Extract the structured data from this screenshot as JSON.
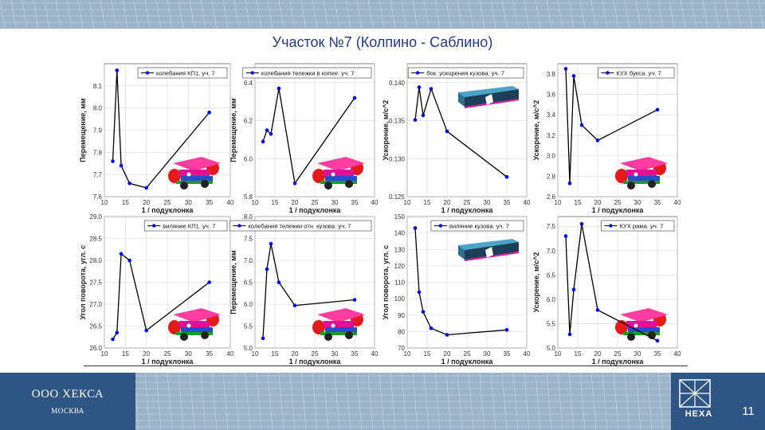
{
  "title": "Участок №7 (Колпино - Саблино)",
  "footer": {
    "company": "ООО ХЕКСА",
    "city": "МОСКВА",
    "logo_text": "HEXA",
    "page_number": "11"
  },
  "colors": {
    "series": "#0000ee",
    "line": "#000000",
    "title": "#1e3a8a",
    "footer_box": "#2f5584"
  },
  "chart_data": [
    {
      "type": "line",
      "legend": "колебания КП1. уч. 7",
      "ylabel": "Перемещение, мм",
      "xlabel": "1 / подуклонка",
      "x": [
        12,
        13,
        14,
        16,
        20,
        35
      ],
      "y": [
        7.76,
        8.17,
        7.74,
        7.66,
        7.64,
        7.98
      ],
      "xlim": [
        10,
        40
      ],
      "ylim": [
        7.6,
        8.2
      ],
      "yticks": [
        "7.6",
        "7.7",
        "7.8",
        "7.9",
        "8.0",
        "8.1"
      ],
      "xticks": [
        "10",
        "15",
        "20",
        "25",
        "30",
        "35",
        "40"
      ],
      "image": "bogie"
    },
    {
      "type": "line",
      "legend": "колебания тележки в колее. уч. 7",
      "ylabel": "Перемещение, мм",
      "xlabel": "1 / подуклонка",
      "x": [
        12,
        13,
        14,
        16,
        20,
        35
      ],
      "y": [
        6.09,
        6.15,
        6.13,
        6.37,
        5.87,
        6.32
      ],
      "xlim": [
        10,
        40
      ],
      "ylim": [
        5.8,
        6.5
      ],
      "yticks": [
        "5.8",
        "6.0",
        "6.2",
        "6.4"
      ],
      "xticks": [
        "10",
        "15",
        "20",
        "25",
        "30",
        "35",
        "40"
      ],
      "image": "bogie"
    },
    {
      "type": "line",
      "legend": "бок. ускорения кузова. уч. 7",
      "ylabel": "Ускорение, м/с^2",
      "xlabel": "1 / подуклонка",
      "x": [
        12,
        13,
        14,
        16,
        20,
        35
      ],
      "y": [
        0.1351,
        0.1394,
        0.1357,
        0.1392,
        0.1336,
        0.1276
      ],
      "xlim": [
        10,
        40
      ],
      "ylim": [
        0.125,
        0.1425
      ],
      "yticks": [
        "0.125",
        "0.130",
        "0.135",
        "0.140"
      ],
      "xticks": [
        "10",
        "15",
        "20",
        "25",
        "30",
        "35",
        "40"
      ],
      "image": "car"
    },
    {
      "type": "line",
      "legend": "КУХ букса. уч. 7",
      "ylabel": "Ускорение, м/с^2",
      "xlabel": "1 / подуклонка",
      "x": [
        12,
        13,
        14,
        16,
        20,
        35
      ],
      "y": [
        3.85,
        2.73,
        3.78,
        3.3,
        3.15,
        3.45
      ],
      "xlim": [
        10,
        40
      ],
      "ylim": [
        2.6,
        3.9
      ],
      "yticks": [
        "2.6",
        "2.8",
        "3.0",
        "3.2",
        "3.4",
        "3.6",
        "3.8"
      ],
      "xticks": [
        "10",
        "15",
        "20",
        "25",
        "30",
        "35",
        "40"
      ],
      "image": "bogie"
    },
    {
      "type": "line",
      "legend": "виляние КП1. уч. 7",
      "ylabel": "Угол поворота, угл. с",
      "xlabel": "1 / подуклонка",
      "x": [
        12,
        13,
        14,
        16,
        20,
        35
      ],
      "y": [
        26.2,
        26.35,
        28.15,
        28.0,
        26.4,
        27.5
      ],
      "xlim": [
        10,
        40
      ],
      "ylim": [
        26.0,
        29.0
      ],
      "yticks": [
        "26.0",
        "26.5",
        "27.0",
        "27.5",
        "28.0",
        "28.5",
        "29.0"
      ],
      "xticks": [
        "10",
        "15",
        "20",
        "25",
        "30",
        "35",
        "40"
      ],
      "image": "bogie"
    },
    {
      "type": "line",
      "legend": "колебания тележки отн. кузова. уч. 7",
      "ylabel": "Перемещение, мм",
      "xlabel": "1 / подуклонка",
      "x": [
        12,
        13,
        14,
        16,
        20,
        35
      ],
      "y": [
        5.22,
        6.8,
        7.38,
        6.5,
        5.97,
        6.1
      ],
      "xlim": [
        10,
        40
      ],
      "ylim": [
        5.0,
        8.0
      ],
      "yticks": [
        "5.0",
        "5.5",
        "6.0",
        "6.5",
        "7.0",
        "7.5",
        "8.0"
      ],
      "xticks": [
        "10",
        "15",
        "20",
        "25",
        "30",
        "35",
        "40"
      ],
      "image": "bogie"
    },
    {
      "type": "line",
      "legend": "виляние кузова. уч. 7",
      "ylabel": "Угол поворота, угл. с",
      "xlabel": "1 / подуклонка",
      "x": [
        12,
        13,
        14,
        16,
        20,
        35
      ],
      "y": [
        143,
        104,
        92,
        82,
        78,
        81
      ],
      "xlim": [
        10,
        40
      ],
      "ylim": [
        70,
        150
      ],
      "yticks": [
        "70",
        "80",
        "90",
        "100",
        "110",
        "120",
        "130",
        "140",
        "150"
      ],
      "xticks": [
        "10",
        "15",
        "20",
        "25",
        "30",
        "35",
        "40"
      ],
      "image": "car"
    },
    {
      "type": "line",
      "legend": "КУХ рама. уч. 7",
      "ylabel": "Ускорение, м/с^2",
      "xlabel": "1 / подуклонка",
      "x": [
        12,
        13,
        14,
        16,
        20,
        35
      ],
      "y": [
        7.3,
        5.28,
        6.2,
        7.55,
        5.78,
        5.15
      ],
      "xlim": [
        10,
        40
      ],
      "ylim": [
        5.0,
        7.7
      ],
      "yticks": [
        "5.0",
        "5.5",
        "6.0",
        "6.5",
        "7.0",
        "7.5"
      ],
      "xticks": [
        "10",
        "15",
        "20",
        "25",
        "30",
        "35",
        "40"
      ],
      "image": "bogie"
    }
  ]
}
